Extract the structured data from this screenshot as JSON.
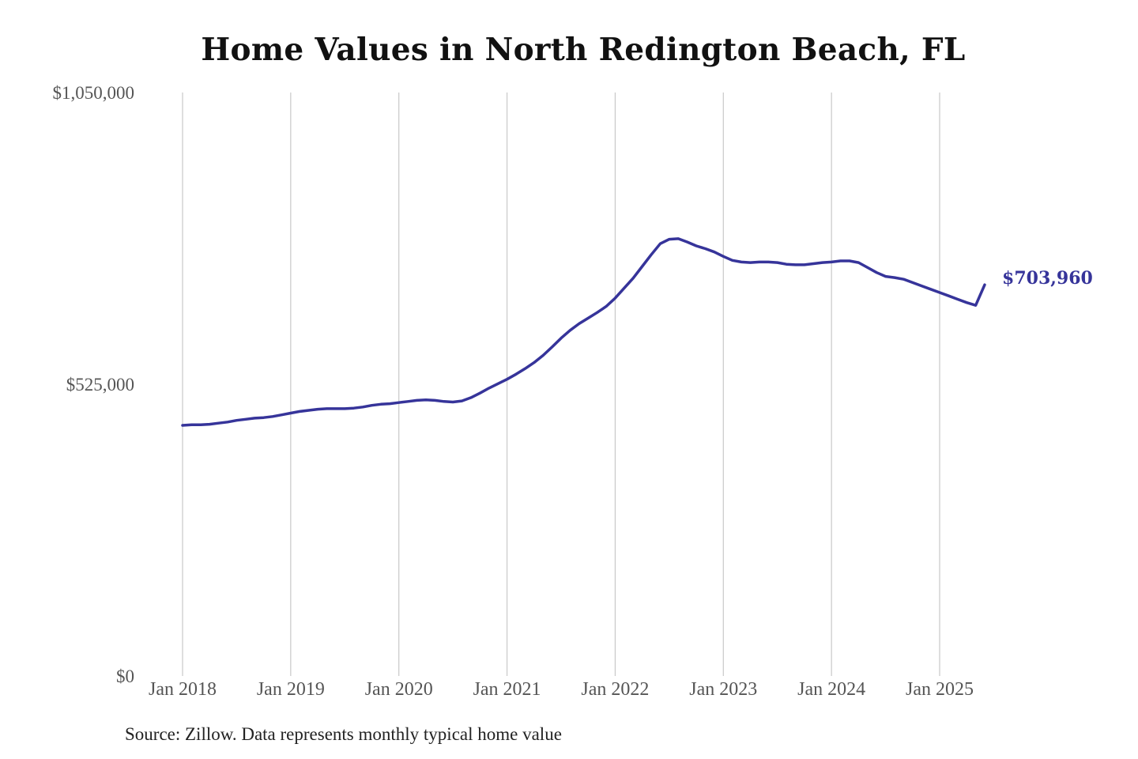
{
  "colors": {
    "line": "#36349a",
    "end_label": "#36349a"
  },
  "chart_data": {
    "type": "line",
    "title": "Home Values in North Redington Beach, FL",
    "xlabel": "",
    "ylabel": "",
    "source": "Source: Zillow. Data represents monthly typical home value",
    "ylim": [
      0,
      1050000
    ],
    "y_ticks": [
      {
        "value": 0,
        "label": "$0"
      },
      {
        "value": 525000,
        "label": "$525,000"
      },
      {
        "value": 1050000,
        "label": "$1,050,000"
      }
    ],
    "x_ticks": [
      {
        "value": "2018-01",
        "label": "Jan 2018"
      },
      {
        "value": "2019-01",
        "label": "Jan 2019"
      },
      {
        "value": "2020-01",
        "label": "Jan 2020"
      },
      {
        "value": "2021-01",
        "label": "Jan 2021"
      },
      {
        "value": "2022-01",
        "label": "Jan 2022"
      },
      {
        "value": "2023-01",
        "label": "Jan 2023"
      },
      {
        "value": "2024-01",
        "label": "Jan 2024"
      },
      {
        "value": "2025-01",
        "label": "Jan 2025"
      }
    ],
    "grid": {
      "vertical": true,
      "horizontal": false
    },
    "end_label": "$703,960",
    "series": [
      {
        "x": [
          "2018-01",
          "2018-02",
          "2018-03",
          "2018-04",
          "2018-05",
          "2018-06",
          "2018-07",
          "2018-08",
          "2018-09",
          "2018-10",
          "2018-11",
          "2018-12",
          "2019-01",
          "2019-02",
          "2019-03",
          "2019-04",
          "2019-05",
          "2019-06",
          "2019-07",
          "2019-08",
          "2019-09",
          "2019-10",
          "2019-11",
          "2019-12",
          "2020-01",
          "2020-02",
          "2020-03",
          "2020-04",
          "2020-05",
          "2020-06",
          "2020-07",
          "2020-08",
          "2020-09",
          "2020-10",
          "2020-11",
          "2020-12",
          "2021-01",
          "2021-02",
          "2021-03",
          "2021-04",
          "2021-05",
          "2021-06",
          "2021-07",
          "2021-08",
          "2021-09",
          "2021-10",
          "2021-11",
          "2021-12",
          "2022-01",
          "2022-02",
          "2022-03",
          "2022-04",
          "2022-05",
          "2022-06",
          "2022-07",
          "2022-08",
          "2022-09",
          "2022-10",
          "2022-11",
          "2022-12",
          "2023-01",
          "2023-02",
          "2023-03",
          "2023-04",
          "2023-05",
          "2023-06",
          "2023-07",
          "2023-08",
          "2023-09",
          "2023-10",
          "2023-11",
          "2023-12",
          "2024-01",
          "2024-02",
          "2024-03",
          "2024-04",
          "2024-05",
          "2024-06",
          "2024-07",
          "2024-08",
          "2024-09",
          "2024-10",
          "2024-11",
          "2024-12",
          "2025-01",
          "2025-02",
          "2025-03",
          "2025-04",
          "2025-05",
          "2025-06"
        ],
        "values": [
          451000,
          452000,
          452000,
          453000,
          455000,
          457000,
          460000,
          462000,
          464000,
          465000,
          467000,
          470000,
          473000,
          476000,
          478000,
          480000,
          481000,
          481000,
          481000,
          482000,
          484000,
          487000,
          489000,
          490000,
          492000,
          494000,
          496000,
          497000,
          496000,
          494000,
          493000,
          495000,
          501000,
          509000,
          518000,
          526000,
          534000,
          543000,
          553000,
          564000,
          577000,
          592000,
          608000,
          622000,
          634000,
          644000,
          654000,
          665000,
          680000,
          698000,
          716000,
          737000,
          758000,
          778000,
          786000,
          787000,
          781000,
          774000,
          769000,
          763000,
          755000,
          748000,
          745000,
          744000,
          745000,
          745000,
          744000,
          741000,
          740000,
          740000,
          742000,
          744000,
          745000,
          747000,
          747000,
          744000,
          735000,
          726000,
          719000,
          717000,
          714000,
          708000,
          702000,
          696000,
          690000,
          684000,
          678000,
          672000,
          667000,
          703960
        ]
      }
    ]
  }
}
